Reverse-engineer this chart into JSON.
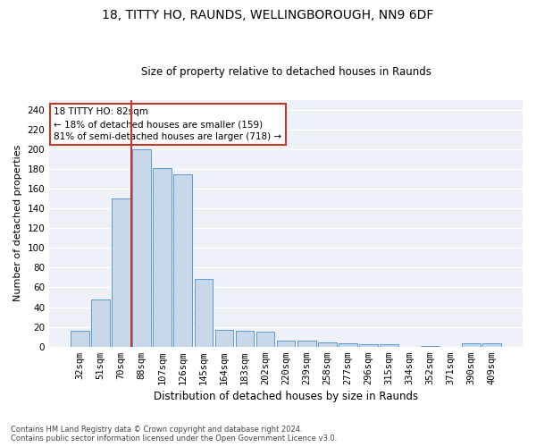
{
  "title": "18, TITTY HO, RAUNDS, WELLINGBOROUGH, NN9 6DF",
  "subtitle": "Size of property relative to detached houses in Raunds",
  "xlabel": "Distribution of detached houses by size in Raunds",
  "ylabel": "Number of detached properties",
  "bar_color": "#c8d8e8",
  "bar_edge_color": "#5b9bd5",
  "bg_color": "#eef2f8",
  "grid_color": "white",
  "annotation_text": "18 TITTY HO: 82sqm\n← 18% of detached houses are smaller (159)\n81% of semi-detached houses are larger (718) →",
  "vline_color": "#c0392b",
  "categories": [
    "32sqm",
    "51sqm",
    "70sqm",
    "88sqm",
    "107sqm",
    "126sqm",
    "145sqm",
    "164sqm",
    "183sqm",
    "202sqm",
    "220sqm",
    "239sqm",
    "258sqm",
    "277sqm",
    "296sqm",
    "315sqm",
    "334sqm",
    "352sqm",
    "371sqm",
    "390sqm",
    "409sqm"
  ],
  "values": [
    16,
    48,
    150,
    200,
    181,
    175,
    69,
    17,
    16,
    15,
    6,
    6,
    4,
    3,
    2,
    2,
    0,
    1,
    0,
    3,
    3
  ],
  "ylim": [
    0,
    250
  ],
  "yticks": [
    0,
    20,
    40,
    60,
    80,
    100,
    120,
    140,
    160,
    180,
    200,
    220,
    240
  ],
  "footer": "Contains HM Land Registry data © Crown copyright and database right 2024.\nContains public sector information licensed under the Open Government Licence v3.0.",
  "title_fontsize": 10,
  "subtitle_fontsize": 8.5,
  "ylabel_fontsize": 8,
  "xlabel_fontsize": 8.5,
  "tick_fontsize": 7.5,
  "footer_fontsize": 6
}
